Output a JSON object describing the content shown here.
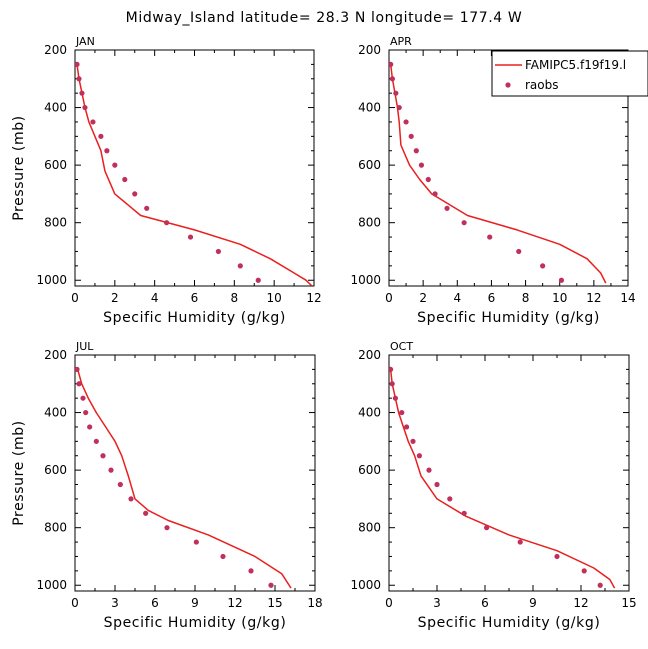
{
  "figure": {
    "title": "Midway_Island   latitude= 28.3 N longitude= 177.4 W"
  },
  "chart_data": [
    {
      "type": "line",
      "panel": "JAN",
      "xlabel": "Specific Humidity (g/kg)",
      "ylabel": "Pressure (mb)",
      "xlim": [
        0,
        12
      ],
      "ylim": [
        1020,
        200
      ],
      "xticks": [
        0,
        2,
        4,
        6,
        8,
        10,
        12
      ],
      "yticks": [
        200,
        400,
        600,
        800,
        1000
      ],
      "series": [
        {
          "name": "FAMIPC5.f19f19.l",
          "style": "line",
          "color": "#e8201e",
          "x": [
            0.1,
            0.2,
            0.35,
            0.5,
            0.7,
            1.0,
            1.3,
            1.5,
            2.0,
            3.3,
            6.0,
            8.3,
            9.8,
            11.0,
            11.6,
            11.9
          ],
          "y": [
            250,
            300,
            350,
            400,
            450,
            500,
            550,
            620,
            700,
            775,
            825,
            875,
            925,
            975,
            1000,
            1020
          ]
        },
        {
          "name": "raobs",
          "style": "dots",
          "color": "#c0305a",
          "x": [
            0.1,
            0.2,
            0.35,
            0.5,
            0.9,
            1.3,
            1.6,
            2.0,
            2.5,
            3.0,
            3.6,
            4.6,
            5.8,
            7.2,
            8.3,
            9.2
          ],
          "y": [
            250,
            300,
            350,
            400,
            450,
            500,
            550,
            600,
            650,
            700,
            750,
            800,
            850,
            900,
            950,
            1000
          ]
        }
      ]
    },
    {
      "type": "line",
      "panel": "APR",
      "xlabel": "Specific Humidity (g/kg)",
      "ylabel": "",
      "xlim": [
        0,
        14
      ],
      "ylim": [
        1020,
        200
      ],
      "xticks": [
        0,
        2,
        4,
        6,
        8,
        10,
        12,
        14
      ],
      "yticks": [
        200,
        400,
        600,
        800,
        1000
      ],
      "legend": {
        "position": "top-right",
        "entries": [
          "FAMIPC5.f19f19.l",
          "raobs"
        ]
      },
      "series": [
        {
          "name": "FAMIPC5.f19f19.l",
          "style": "line",
          "color": "#e8201e",
          "x": [
            0.1,
            0.2,
            0.35,
            0.5,
            0.6,
            0.7,
            1.2,
            1.8,
            2.5,
            4.6,
            7.5,
            10.0,
            11.6,
            12.4,
            12.7
          ],
          "y": [
            250,
            300,
            350,
            400,
            450,
            530,
            600,
            650,
            700,
            775,
            825,
            875,
            925,
            975,
            1010
          ]
        },
        {
          "name": "raobs",
          "style": "dots",
          "color": "#c0305a",
          "x": [
            0.1,
            0.2,
            0.4,
            0.6,
            1.0,
            1.3,
            1.6,
            1.9,
            2.3,
            2.7,
            3.4,
            4.4,
            5.9,
            7.6,
            9.0,
            10.1
          ],
          "y": [
            250,
            300,
            350,
            400,
            450,
            500,
            550,
            600,
            650,
            700,
            750,
            800,
            850,
            900,
            950,
            1000
          ]
        }
      ]
    },
    {
      "type": "line",
      "panel": "JUL",
      "xlabel": "Specific Humidity (g/kg)",
      "ylabel": "Pressure (mb)",
      "xlim": [
        0,
        18
      ],
      "ylim": [
        1020,
        200
      ],
      "xticks": [
        0,
        3,
        6,
        9,
        12,
        15,
        18
      ],
      "yticks": [
        200,
        400,
        600,
        800,
        1000
      ],
      "series": [
        {
          "name": "FAMIPC5.f19f19.l",
          "style": "line",
          "color": "#e8201e",
          "x": [
            0.2,
            0.5,
            1.0,
            1.6,
            2.3,
            3.0,
            3.5,
            4.0,
            4.5,
            5.5,
            7.0,
            10.0,
            13.5,
            15.5,
            16.2
          ],
          "y": [
            250,
            300,
            350,
            400,
            450,
            500,
            550,
            620,
            700,
            740,
            775,
            825,
            900,
            960,
            1010
          ]
        },
        {
          "name": "raobs",
          "style": "dots",
          "color": "#c0305a",
          "x": [
            0.15,
            0.3,
            0.6,
            0.8,
            1.1,
            1.6,
            2.1,
            2.7,
            3.4,
            4.2,
            5.3,
            6.9,
            9.1,
            11.1,
            13.2,
            14.7
          ],
          "y": [
            250,
            300,
            350,
            400,
            450,
            500,
            550,
            600,
            650,
            700,
            750,
            800,
            850,
            900,
            950,
            1000
          ]
        }
      ]
    },
    {
      "type": "line",
      "panel": "OCT",
      "xlabel": "Specific Humidity (g/kg)",
      "ylabel": "",
      "xlim": [
        0,
        15
      ],
      "ylim": [
        1020,
        200
      ],
      "xticks": [
        0,
        3,
        6,
        9,
        12,
        15
      ],
      "yticks": [
        200,
        400,
        600,
        800,
        1000
      ],
      "series": [
        {
          "name": "FAMIPC5.f19f19.l",
          "style": "line",
          "color": "#e8201e",
          "x": [
            0.1,
            0.2,
            0.4,
            0.6,
            0.9,
            1.2,
            1.6,
            2.0,
            3.0,
            4.8,
            7.5,
            10.5,
            12.8,
            13.8,
            14.1
          ],
          "y": [
            250,
            300,
            350,
            400,
            450,
            500,
            550,
            620,
            700,
            760,
            825,
            880,
            940,
            980,
            1010
          ]
        },
        {
          "name": "raobs",
          "style": "dots",
          "color": "#c0305a",
          "x": [
            0.1,
            0.2,
            0.4,
            0.8,
            1.1,
            1.5,
            1.9,
            2.5,
            3.0,
            3.8,
            4.7,
            6.1,
            8.2,
            10.5,
            12.2,
            13.2
          ],
          "y": [
            250,
            300,
            350,
            400,
            450,
            500,
            550,
            600,
            650,
            700,
            750,
            800,
            850,
            900,
            950,
            1000
          ]
        }
      ]
    }
  ]
}
